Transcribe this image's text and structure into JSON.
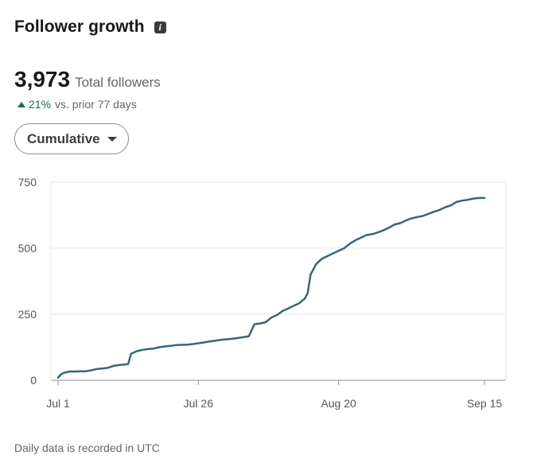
{
  "header": {
    "title": "Follower growth",
    "info_icon": "info-icon"
  },
  "summary": {
    "total_value": "3,973",
    "total_label": "Total followers",
    "change_pct": "21%",
    "change_label": "vs. prior 77 days",
    "change_direction": "up",
    "change_color": "#057642"
  },
  "dropdown": {
    "label": "Cumulative"
  },
  "footer": {
    "note": "Daily data is recorded in UTC"
  },
  "colors": {
    "line": "#3a6475",
    "grid": "#e6e6e6",
    "axis": "#8c8c8c"
  },
  "chart_data": {
    "type": "line",
    "title": "",
    "xlabel": "",
    "ylabel": "",
    "ylim": [
      0,
      750
    ],
    "yticks": [
      0,
      250,
      500,
      750
    ],
    "grid": true,
    "x_ticks": [
      {
        "label": "Jul 1",
        "day": 0
      },
      {
        "label": "Jul 26",
        "day": 25
      },
      {
        "label": "Aug 20",
        "day": 50
      },
      {
        "label": "Sep 15",
        "day": 76
      }
    ],
    "series": [
      {
        "points": [
          [
            0,
            10
          ],
          [
            0.5,
            22
          ],
          [
            1,
            28
          ],
          [
            2,
            33
          ],
          [
            3,
            33
          ],
          [
            4,
            34
          ],
          [
            5,
            34
          ],
          [
            6,
            38
          ],
          [
            7,
            43
          ],
          [
            8,
            45
          ],
          [
            9,
            48
          ],
          [
            10,
            55
          ],
          [
            11,
            58
          ],
          [
            12,
            60
          ],
          [
            12.5,
            62
          ],
          [
            13,
            100
          ],
          [
            14,
            110
          ],
          [
            15,
            115
          ],
          [
            16,
            118
          ],
          [
            17,
            120
          ],
          [
            18,
            125
          ],
          [
            19,
            128
          ],
          [
            20,
            130
          ],
          [
            21,
            133
          ],
          [
            22,
            134
          ],
          [
            23,
            135
          ],
          [
            24,
            137
          ],
          [
            25,
            140
          ],
          [
            26,
            143
          ],
          [
            27,
            147
          ],
          [
            28,
            150
          ],
          [
            29,
            153
          ],
          [
            30,
            155
          ],
          [
            31,
            157
          ],
          [
            32,
            160
          ],
          [
            33,
            163
          ],
          [
            34,
            167
          ],
          [
            35,
            212
          ],
          [
            36,
            215
          ],
          [
            37,
            220
          ],
          [
            38,
            237
          ],
          [
            39,
            247
          ],
          [
            40,
            262
          ],
          [
            41,
            272
          ],
          [
            42,
            282
          ],
          [
            43,
            292
          ],
          [
            44,
            310
          ],
          [
            44.5,
            330
          ],
          [
            45,
            400
          ],
          [
            46,
            440
          ],
          [
            47,
            460
          ],
          [
            48,
            470
          ],
          [
            49,
            480
          ],
          [
            50,
            490
          ],
          [
            51,
            500
          ],
          [
            52,
            517
          ],
          [
            53,
            530
          ],
          [
            54,
            540
          ],
          [
            55,
            550
          ],
          [
            56,
            553
          ],
          [
            57,
            560
          ],
          [
            58,
            568
          ],
          [
            59,
            578
          ],
          [
            60,
            590
          ],
          [
            61,
            595
          ],
          [
            62,
            605
          ],
          [
            63,
            613
          ],
          [
            64,
            618
          ],
          [
            65,
            622
          ],
          [
            66,
            630
          ],
          [
            67,
            638
          ],
          [
            68,
            645
          ],
          [
            69,
            655
          ],
          [
            70,
            662
          ],
          [
            71,
            675
          ],
          [
            72,
            680
          ],
          [
            73,
            683
          ],
          [
            74,
            688
          ],
          [
            75,
            690
          ],
          [
            76,
            690
          ]
        ]
      }
    ]
  }
}
